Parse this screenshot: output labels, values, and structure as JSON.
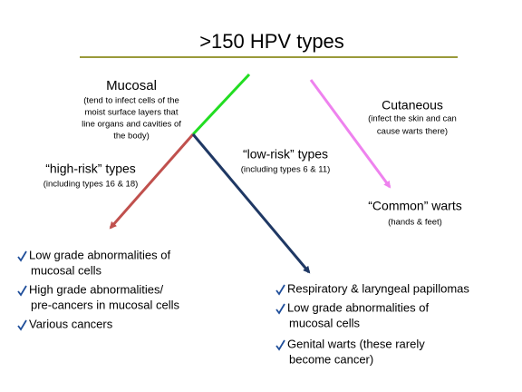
{
  "title": ">150 HPV types",
  "mucosal": {
    "label": "Mucosal",
    "description": [
      "(tend to infect cells of the",
      "moist surface layers that",
      "line organs and cavities of",
      "the body)"
    ]
  },
  "cutaneous": {
    "label": "Cutaneous",
    "description": [
      "(infect the skin and can",
      "cause warts there)"
    ]
  },
  "high_risk": {
    "label": "“high-risk” types",
    "note": "(including types 16 & 18)",
    "outcomes": [
      [
        "Low grade abnormalities of",
        "mucosal cells"
      ],
      [
        "High grade abnormalities/",
        "pre-cancers in mucosal cells"
      ],
      [
        "Various cancers"
      ]
    ]
  },
  "low_risk": {
    "label": "“low-risk” types",
    "note": "(including types 6 & 11)",
    "outcomes": [
      [
        "Respiratory & laryngeal papillomas"
      ],
      [
        "Low grade abnormalities of",
        "mucosal cells"
      ],
      [
        "Genital warts (these rarely",
        "become cancer)"
      ]
    ]
  },
  "common_warts": {
    "label": "“Common” warts",
    "note": "(hands & feet)"
  }
}
